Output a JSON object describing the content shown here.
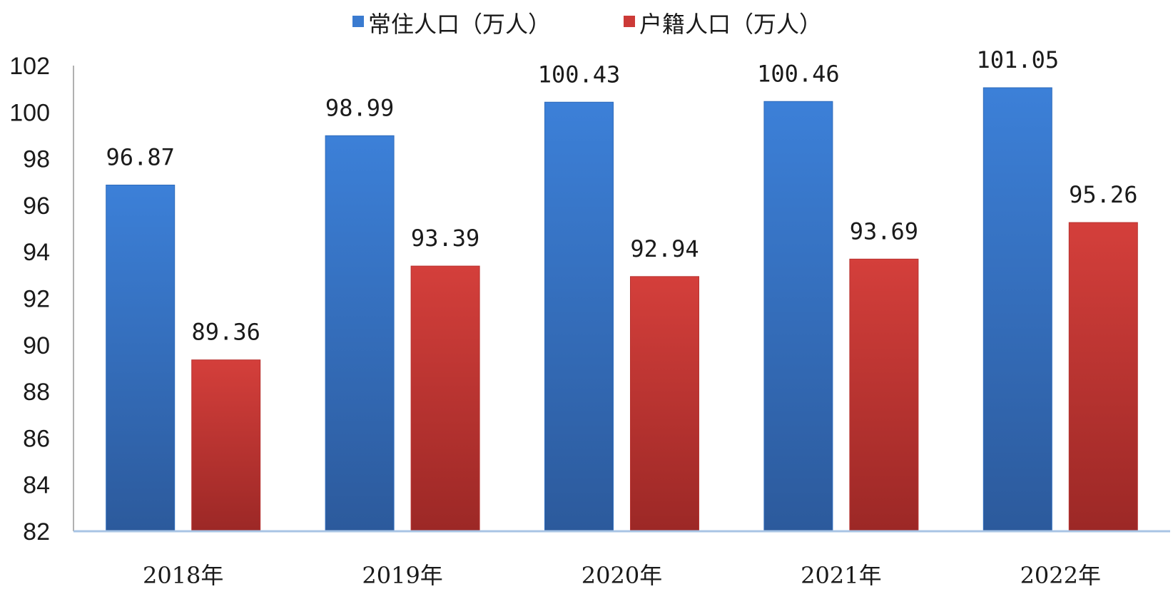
{
  "chart_data": {
    "type": "bar",
    "categories": [
      "2018年",
      "2019年",
      "2020年",
      "2021年",
      "2022年"
    ],
    "series": [
      {
        "name": "常住人口（万人）",
        "color": "#3a7bd0",
        "values": [
          96.87,
          98.99,
          100.43,
          100.46,
          101.05
        ],
        "labels": [
          "96.87",
          "98.99",
          "100.43",
          "100.46",
          "101.05"
        ]
      },
      {
        "name": "户籍人口（万人）",
        "color": "#cc3a37",
        "values": [
          89.36,
          93.39,
          92.94,
          93.69,
          95.26
        ],
        "labels": [
          "89.36",
          "93.39",
          "92.94",
          "93.69",
          "95.26"
        ]
      }
    ],
    "ylim": [
      82,
      102
    ],
    "yticks": [
      "82",
      "84",
      "86",
      "88",
      "90",
      "92",
      "94",
      "96",
      "98",
      "100",
      "102"
    ],
    "grid": false,
    "legend": "top-center",
    "title": "",
    "xlabel": "",
    "ylabel": ""
  }
}
